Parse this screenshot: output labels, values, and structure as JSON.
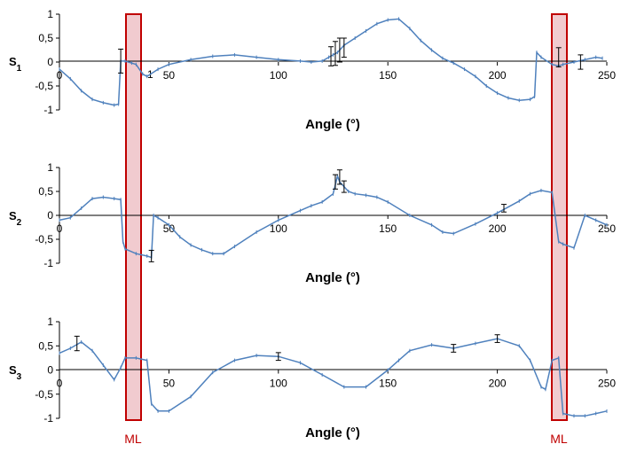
{
  "chart_data": [
    {
      "type": "line",
      "ylabel_main": "S",
      "ylabel_sub": "1",
      "xlabel": "Angle (°)",
      "xlim": [
        0,
        250
      ],
      "ylim": [
        -1,
        1
      ],
      "xticks": [
        "0",
        "50",
        "100",
        "150",
        "200",
        "250"
      ],
      "yticks": [
        "1",
        "0,5",
        "0",
        "-0,5",
        "-1"
      ],
      "xtick_overlay": "1",
      "color": "#4f81bd",
      "series": [
        {
          "x": [
            0,
            5,
            10,
            15,
            20,
            25,
            27,
            28,
            30,
            33,
            35,
            38,
            40,
            45,
            50,
            60,
            70,
            80,
            90,
            100,
            110,
            115,
            120,
            123,
            125,
            127,
            128,
            130,
            135,
            140,
            145,
            150,
            155,
            160,
            165,
            170,
            175,
            180,
            185,
            190,
            195,
            200,
            205,
            210,
            215,
            217,
            218,
            220,
            225,
            228,
            230,
            235,
            240,
            245,
            248
          ],
          "y": [
            -0.15,
            -0.35,
            -0.6,
            -0.78,
            -0.85,
            -0.9,
            -0.88,
            0.02,
            0.02,
            -0.02,
            -0.05,
            -0.25,
            -0.3,
            -0.15,
            -0.05,
            0.05,
            0.12,
            0.15,
            0.1,
            0.05,
            0.02,
            0.0,
            0.02,
            0.1,
            0.15,
            0.2,
            0.25,
            0.35,
            0.5,
            0.65,
            0.8,
            0.88,
            0.9,
            0.7,
            0.45,
            0.25,
            0.08,
            -0.02,
            -0.15,
            -0.3,
            -0.5,
            -0.65,
            -0.75,
            -0.8,
            -0.78,
            -0.72,
            0.2,
            0.1,
            -0.05,
            -0.08,
            -0.05,
            0.0,
            0.05,
            0.1,
            0.08
          ]
        }
      ],
      "error_bars": [
        {
          "x": 28,
          "y": 0.02,
          "err": 0.25
        },
        {
          "x": 124,
          "y": 0.12,
          "err": 0.2
        },
        {
          "x": 126,
          "y": 0.18,
          "err": 0.25
        },
        {
          "x": 128,
          "y": 0.25,
          "err": 0.25
        },
        {
          "x": 130,
          "y": 0.3,
          "err": 0.2
        },
        {
          "x": 228,
          "y": 0.1,
          "err": 0.2
        },
        {
          "x": 238,
          "y": 0.0,
          "err": 0.15
        }
      ]
    },
    {
      "type": "line",
      "ylabel_main": "S",
      "ylabel_sub": "2",
      "xlabel": "Angle (°)",
      "xlim": [
        0,
        250
      ],
      "ylim": [
        -1,
        1
      ],
      "xticks": [
        "0",
        "50",
        "100",
        "150",
        "200",
        "250"
      ],
      "yticks": [
        "1",
        "0,5",
        "0",
        "-0,5",
        "-1"
      ],
      "color": "#4f81bd",
      "series": [
        {
          "x": [
            0,
            5,
            10,
            15,
            20,
            25,
            28,
            29,
            30,
            35,
            40,
            42,
            43,
            45,
            50,
            55,
            60,
            65,
            70,
            75,
            80,
            90,
            100,
            110,
            115,
            120,
            125,
            127,
            128,
            130,
            132,
            135,
            140,
            145,
            150,
            160,
            170,
            175,
            180,
            190,
            200,
            210,
            215,
            220,
            225,
            228,
            230,
            235,
            240,
            245,
            250
          ],
          "y": [
            -0.1,
            -0.05,
            0.15,
            0.35,
            0.38,
            0.35,
            0.33,
            -0.55,
            -0.7,
            -0.8,
            -0.85,
            -0.88,
            0.0,
            -0.05,
            -0.2,
            -0.45,
            -0.62,
            -0.72,
            -0.8,
            -0.8,
            -0.65,
            -0.35,
            -0.1,
            0.1,
            0.2,
            0.28,
            0.45,
            0.82,
            0.7,
            0.6,
            0.5,
            0.45,
            0.42,
            0.38,
            0.28,
            0.0,
            -0.2,
            -0.35,
            -0.38,
            -0.18,
            0.05,
            0.3,
            0.45,
            0.52,
            0.48,
            -0.55,
            -0.6,
            -0.68,
            0.0,
            -0.1,
            -0.2
          ]
        }
      ],
      "error_bars": [
        {
          "x": 42,
          "y": -0.85,
          "err": 0.12
        },
        {
          "x": 126,
          "y": 0.7,
          "err": 0.15
        },
        {
          "x": 128,
          "y": 0.8,
          "err": 0.15
        },
        {
          "x": 130,
          "y": 0.6,
          "err": 0.12
        },
        {
          "x": 203,
          "y": 0.15,
          "err": 0.08
        }
      ]
    },
    {
      "type": "line",
      "ylabel_main": "S",
      "ylabel_sub": "3",
      "xlabel": "Angle (°)",
      "xlim": [
        0,
        250
      ],
      "ylim": [
        -1,
        1
      ],
      "xticks": [
        "0",
        "50",
        "100",
        "150",
        "200",
        "250"
      ],
      "yticks": [
        "1",
        "0,5",
        "0",
        "-0,5",
        "-1"
      ],
      "color": "#4f81bd",
      "series": [
        {
          "x": [
            0,
            5,
            10,
            15,
            20,
            25,
            28,
            30,
            35,
            40,
            42,
            45,
            50,
            60,
            70,
            80,
            90,
            100,
            110,
            120,
            130,
            140,
            150,
            155,
            160,
            170,
            180,
            190,
            200,
            210,
            215,
            220,
            222,
            225,
            228,
            230,
            235,
            240,
            245,
            250
          ],
          "y": [
            0.35,
            0.45,
            0.58,
            0.4,
            0.1,
            -0.2,
            0.05,
            0.25,
            0.25,
            0.2,
            -0.7,
            -0.85,
            -0.85,
            -0.55,
            -0.05,
            0.2,
            0.3,
            0.28,
            0.15,
            -0.1,
            -0.35,
            -0.35,
            0.0,
            0.2,
            0.4,
            0.52,
            0.45,
            0.55,
            0.65,
            0.5,
            0.2,
            -0.35,
            -0.4,
            0.2,
            0.25,
            -0.9,
            -0.95,
            -0.95,
            -0.9,
            -0.85
          ]
        }
      ],
      "error_bars": [
        {
          "x": 8,
          "y": 0.55,
          "err": 0.15
        },
        {
          "x": 100,
          "y": 0.28,
          "err": 0.08
        },
        {
          "x": 180,
          "y": 0.45,
          "err": 0.08
        },
        {
          "x": 200,
          "y": 0.65,
          "err": 0.08
        }
      ]
    }
  ],
  "bands": [
    {
      "label": "ML"
    },
    {
      "label": "ML"
    }
  ]
}
